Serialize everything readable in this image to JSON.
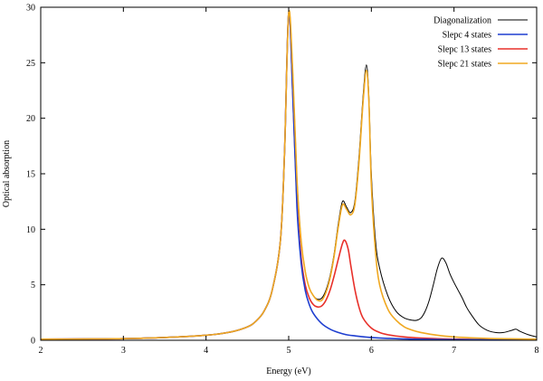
{
  "chart_data": {
    "type": "line",
    "title": "",
    "xlabel": "Energy (eV)",
    "ylabel": "Optical absorption",
    "xlim": [
      2,
      8
    ],
    "ylim": [
      0,
      30
    ],
    "xticks": [
      "2",
      "3",
      "4",
      "5",
      "6",
      "7",
      "8"
    ],
    "yticks": [
      "0",
      "5",
      "10",
      "15",
      "20",
      "25",
      "30"
    ],
    "grid": false,
    "legend_position": "top-right",
    "series": [
      {
        "name": "Diagonalization",
        "color": "#000000",
        "x": [
          2.0,
          2.5,
          3.0,
          3.5,
          4.0,
          4.3,
          4.5,
          4.6,
          4.7,
          4.8,
          4.9,
          4.95,
          5.0,
          5.05,
          5.1,
          5.15,
          5.2,
          5.25,
          5.3,
          5.35,
          5.4,
          5.45,
          5.5,
          5.55,
          5.6,
          5.65,
          5.7,
          5.75,
          5.8,
          5.85,
          5.9,
          5.94,
          5.97,
          6.0,
          6.05,
          6.1,
          6.2,
          6.3,
          6.4,
          6.5,
          6.55,
          6.6,
          6.65,
          6.7,
          6.75,
          6.8,
          6.85,
          6.9,
          6.95,
          7.0,
          7.05,
          7.1,
          7.15,
          7.2,
          7.3,
          7.4,
          7.5,
          7.6,
          7.7,
          7.75,
          7.8,
          7.9,
          8.0
        ],
        "y": [
          0.1,
          0.12,
          0.15,
          0.25,
          0.45,
          0.75,
          1.2,
          1.7,
          2.6,
          4.5,
          9.0,
          17.0,
          29.5,
          24.0,
          14.5,
          9.0,
          6.2,
          4.7,
          4.0,
          3.7,
          3.8,
          4.5,
          5.8,
          7.8,
          10.5,
          12.5,
          12.0,
          11.5,
          12.5,
          16.5,
          22.0,
          24.8,
          22.0,
          15.0,
          9.0,
          6.5,
          4.0,
          2.6,
          2.0,
          1.8,
          1.8,
          2.0,
          2.6,
          3.6,
          5.0,
          6.5,
          7.4,
          7.0,
          6.0,
          5.2,
          4.5,
          3.8,
          3.0,
          2.4,
          1.4,
          0.9,
          0.7,
          0.7,
          0.9,
          1.0,
          0.8,
          0.5,
          0.3
        ]
      },
      {
        "name": "Slepc 4 states",
        "color": "#1f3fd0",
        "x": [
          2.0,
          2.5,
          3.0,
          3.5,
          4.0,
          4.3,
          4.5,
          4.6,
          4.7,
          4.8,
          4.9,
          4.95,
          5.0,
          5.05,
          5.1,
          5.15,
          5.2,
          5.25,
          5.3,
          5.4,
          5.5,
          5.6,
          5.7,
          5.8,
          6.0,
          6.2,
          6.5,
          7.0,
          7.5,
          8.0
        ],
        "y": [
          0.1,
          0.12,
          0.15,
          0.25,
          0.45,
          0.75,
          1.2,
          1.7,
          2.6,
          4.5,
          9.0,
          17.0,
          29.5,
          22.0,
          12.0,
          7.0,
          4.5,
          3.2,
          2.4,
          1.5,
          1.0,
          0.7,
          0.5,
          0.4,
          0.25,
          0.17,
          0.1,
          0.06,
          0.04,
          0.03
        ]
      },
      {
        "name": "Slepc 13 states",
        "color": "#e8302a",
        "x": [
          2.0,
          2.5,
          3.0,
          3.5,
          4.0,
          4.3,
          4.5,
          4.6,
          4.7,
          4.8,
          4.9,
          4.95,
          5.0,
          5.05,
          5.1,
          5.15,
          5.2,
          5.25,
          5.3,
          5.35,
          5.4,
          5.45,
          5.5,
          5.55,
          5.6,
          5.65,
          5.68,
          5.72,
          5.75,
          5.8,
          5.85,
          5.9,
          6.0,
          6.1,
          6.2,
          6.4,
          6.6,
          7.0,
          7.5,
          8.0
        ],
        "y": [
          0.1,
          0.12,
          0.15,
          0.25,
          0.45,
          0.75,
          1.2,
          1.7,
          2.6,
          4.5,
          9.0,
          17.0,
          29.5,
          22.0,
          12.5,
          7.5,
          5.0,
          3.8,
          3.2,
          3.0,
          3.1,
          3.6,
          4.5,
          5.8,
          7.3,
          8.7,
          9.0,
          8.2,
          6.8,
          4.6,
          3.0,
          2.0,
          1.1,
          0.7,
          0.5,
          0.3,
          0.2,
          0.1,
          0.06,
          0.04
        ]
      },
      {
        "name": "Slepc 21 states",
        "color": "#f0a820",
        "x": [
          2.0,
          2.5,
          3.0,
          3.5,
          4.0,
          4.3,
          4.5,
          4.6,
          4.7,
          4.8,
          4.9,
          4.95,
          5.0,
          5.05,
          5.1,
          5.15,
          5.2,
          5.25,
          5.3,
          5.35,
          5.4,
          5.45,
          5.5,
          5.55,
          5.6,
          5.65,
          5.7,
          5.75,
          5.8,
          5.85,
          5.9,
          5.94,
          5.97,
          6.0,
          6.05,
          6.1,
          6.2,
          6.3,
          6.4,
          6.5,
          6.6,
          6.8,
          7.0,
          7.2,
          7.5,
          8.0
        ],
        "y": [
          0.1,
          0.12,
          0.15,
          0.25,
          0.45,
          0.75,
          1.2,
          1.7,
          2.6,
          4.5,
          9.0,
          17.0,
          29.5,
          24.0,
          14.5,
          9.0,
          6.2,
          4.7,
          4.0,
          3.6,
          3.6,
          4.3,
          5.6,
          7.6,
          10.2,
          12.2,
          11.8,
          11.3,
          12.2,
          16.0,
          21.5,
          24.3,
          21.5,
          14.0,
          8.0,
          5.0,
          2.8,
          1.8,
          1.2,
          0.9,
          0.7,
          0.45,
          0.3,
          0.22,
          0.15,
          0.1
        ]
      }
    ]
  }
}
